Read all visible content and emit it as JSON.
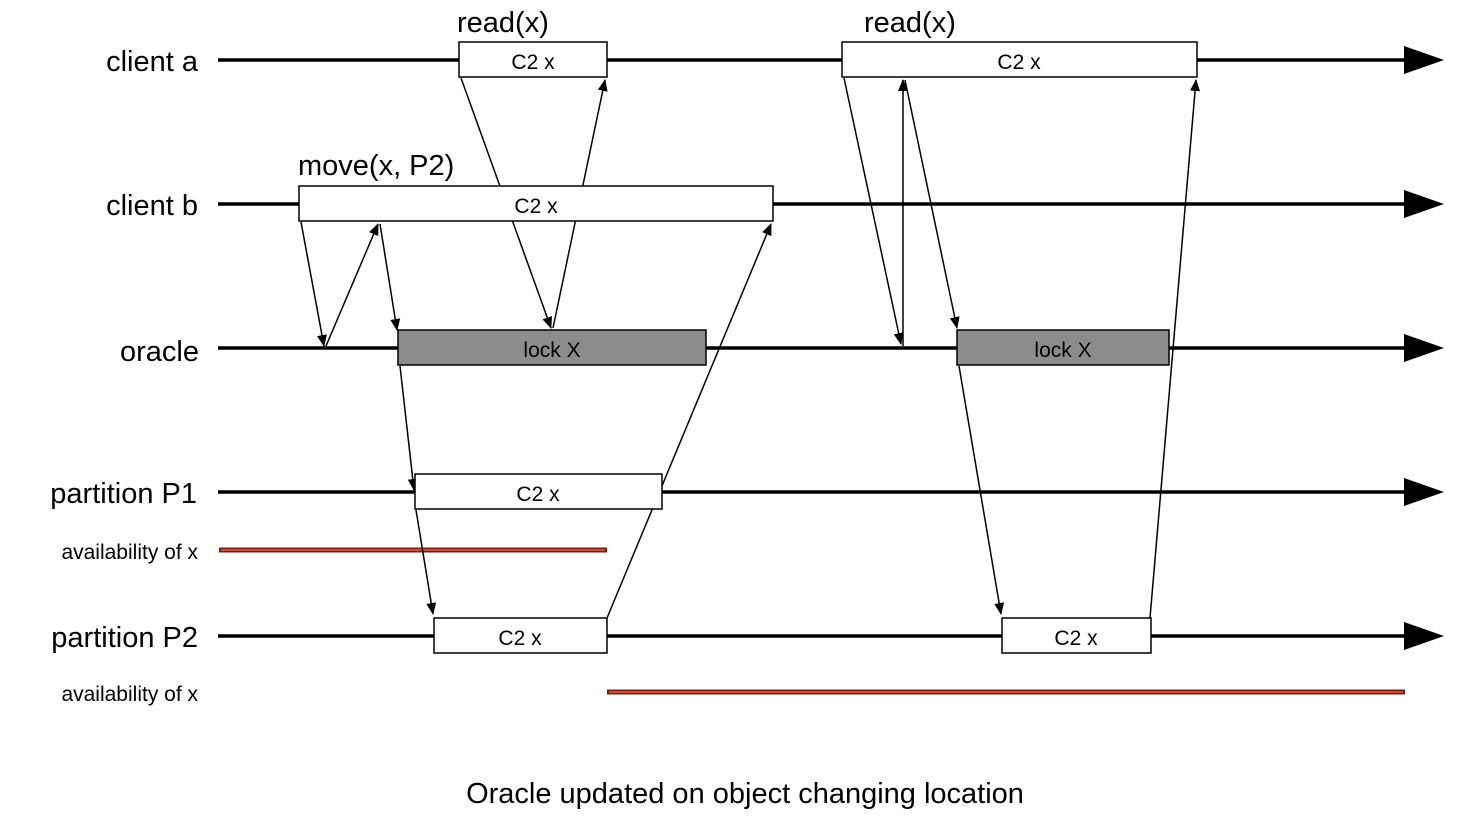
{
  "diagram": {
    "lanes": [
      {
        "id": "client_a",
        "label": "client a"
      },
      {
        "id": "client_b",
        "label": "client b"
      },
      {
        "id": "oracle",
        "label": "oracle"
      },
      {
        "id": "p1",
        "label": "partition P1"
      },
      {
        "id": "p2",
        "label": "partition P2"
      }
    ],
    "availability_labels": [
      "availability of x",
      "availability of x"
    ],
    "operations": [
      "read(x)",
      "read(x)",
      "move(x, P2)"
    ],
    "boxes": [
      {
        "lane": "client_a",
        "label": "C2 x",
        "style": "plain"
      },
      {
        "lane": "client_a",
        "label": "C2 x",
        "style": "plain"
      },
      {
        "lane": "client_b",
        "label": "C2 x",
        "style": "plain"
      },
      {
        "lane": "oracle",
        "label": "lock X",
        "style": "locked"
      },
      {
        "lane": "oracle",
        "label": "lock X",
        "style": "locked"
      },
      {
        "lane": "p1",
        "label": "C2 x",
        "style": "plain"
      },
      {
        "lane": "p2",
        "label": "C2 x",
        "style": "plain"
      },
      {
        "lane": "p2",
        "label": "C2 x",
        "style": "plain"
      }
    ],
    "caption": "Oracle updated on object changing location",
    "colors": {
      "timeline": "#000000",
      "lock_fill": "#8c8c8c",
      "box_fill": "#ffffff",
      "availability": "#7a1c14"
    }
  }
}
